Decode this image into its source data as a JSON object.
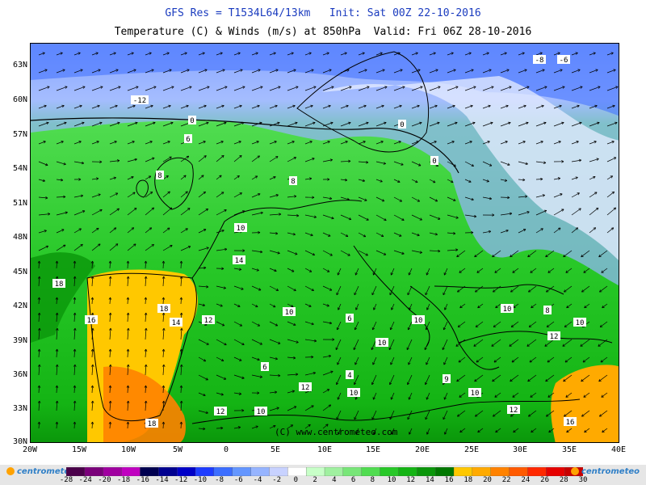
{
  "titles": {
    "line1": "GFS Res = T1534L64/13km   Init: Sat 00Z 22-10-2016",
    "line2": "Temperature (C) & Winds (m/s) at 850hPa  Valid: Fri 06Z 28-10-2016"
  },
  "lat_labels": [
    "63N",
    "60N",
    "57N",
    "54N",
    "51N",
    "48N",
    "45N",
    "42N",
    "39N",
    "36N",
    "33N",
    "30N"
  ],
  "lon_labels": [
    "20W",
    "15W",
    "10W",
    "5W",
    "0",
    "5E",
    "10E",
    "15E",
    "20E",
    "25E",
    "30E",
    "35E",
    "40E"
  ],
  "credit": "(C) www.centrometeo.com",
  "logo_text": "centrometeo",
  "legend": {
    "labels": [
      "-28",
      "-24",
      "-20",
      "-18",
      "-16",
      "-14",
      "-12",
      "-10",
      "-8",
      "-6",
      "-4",
      "-2",
      "0",
      "2",
      "4",
      "6",
      "8",
      "10",
      "12",
      "14",
      "16",
      "18",
      "20",
      "22",
      "24",
      "26",
      "28",
      "30"
    ],
    "colors": [
      "#4a004a",
      "#7a007a",
      "#a000a0",
      "#c000c0",
      "#000050",
      "#000090",
      "#0000c8",
      "#1e3cff",
      "#3c6eff",
      "#6496ff",
      "#96b4ff",
      "#c8d2ff",
      "#ffffff",
      "#c8ffc8",
      "#a0f0a0",
      "#78e678",
      "#50dc50",
      "#28c828",
      "#14b414",
      "#0a960a",
      "#007800",
      "#ffc800",
      "#ffaa00",
      "#ff8200",
      "#ff5a00",
      "#ff2800",
      "#e60000",
      "#c80000"
    ]
  },
  "map_labels": [
    {
      "text": "-12"
    },
    {
      "text": "-8"
    },
    {
      "text": "-6"
    },
    {
      "text": "0"
    },
    {
      "text": "0"
    },
    {
      "text": "0"
    },
    {
      "text": "6"
    },
    {
      "text": "8"
    },
    {
      "text": "8"
    },
    {
      "text": "10"
    },
    {
      "text": "14"
    },
    {
      "text": "18"
    },
    {
      "text": "18"
    },
    {
      "text": "16"
    },
    {
      "text": "14"
    },
    {
      "text": "12"
    },
    {
      "text": "10"
    },
    {
      "text": "6"
    },
    {
      "text": "10"
    },
    {
      "text": "10"
    },
    {
      "text": "4"
    },
    {
      "text": "6"
    },
    {
      "text": "10"
    },
    {
      "text": "12"
    },
    {
      "text": "10"
    },
    {
      "text": "8"
    },
    {
      "text": "12"
    },
    {
      "text": "10"
    },
    {
      "text": "16"
    },
    {
      "text": "18"
    },
    {
      "text": "12"
    },
    {
      "text": "10"
    },
    {
      "text": "9"
    },
    {
      "text": "10"
    },
    {
      "text": "12"
    }
  ]
}
